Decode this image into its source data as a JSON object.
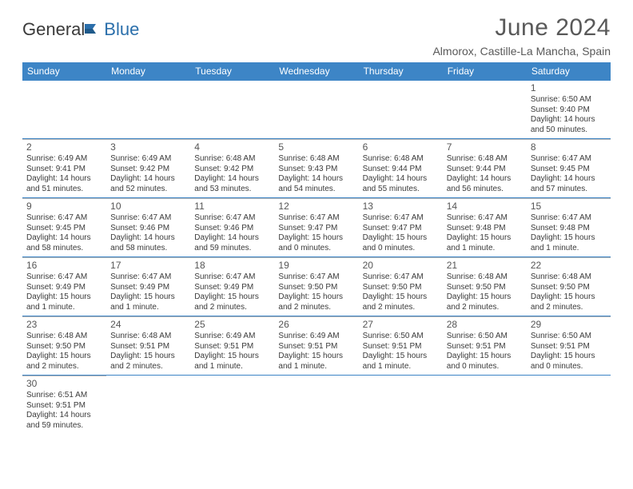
{
  "brand": {
    "part1": "General",
    "part2": "Blue"
  },
  "title": "June 2024",
  "location": "Almorox, Castille-La Mancha, Spain",
  "theme": {
    "header_bg": "#3d85c6",
    "header_text": "#ffffff",
    "rule_color": "#3d85c6",
    "cell_border": "#b8b8b8",
    "text_color": "#3a3a3a",
    "title_color": "#595959",
    "daynum_fontsize": 12,
    "body_fontsize": 10,
    "title_fontsize": 30,
    "subtitle_fontsize": 14
  },
  "daynames": [
    "Sunday",
    "Monday",
    "Tuesday",
    "Wednesday",
    "Thursday",
    "Friday",
    "Saturday"
  ],
  "weeks": [
    [
      null,
      null,
      null,
      null,
      null,
      null,
      {
        "n": "1",
        "sunrise": "Sunrise: 6:50 AM",
        "sunset": "Sunset: 9:40 PM",
        "daylight": "Daylight: 14 hours and 50 minutes."
      }
    ],
    [
      {
        "n": "2",
        "sunrise": "Sunrise: 6:49 AM",
        "sunset": "Sunset: 9:41 PM",
        "daylight": "Daylight: 14 hours and 51 minutes."
      },
      {
        "n": "3",
        "sunrise": "Sunrise: 6:49 AM",
        "sunset": "Sunset: 9:42 PM",
        "daylight": "Daylight: 14 hours and 52 minutes."
      },
      {
        "n": "4",
        "sunrise": "Sunrise: 6:48 AM",
        "sunset": "Sunset: 9:42 PM",
        "daylight": "Daylight: 14 hours and 53 minutes."
      },
      {
        "n": "5",
        "sunrise": "Sunrise: 6:48 AM",
        "sunset": "Sunset: 9:43 PM",
        "daylight": "Daylight: 14 hours and 54 minutes."
      },
      {
        "n": "6",
        "sunrise": "Sunrise: 6:48 AM",
        "sunset": "Sunset: 9:44 PM",
        "daylight": "Daylight: 14 hours and 55 minutes."
      },
      {
        "n": "7",
        "sunrise": "Sunrise: 6:48 AM",
        "sunset": "Sunset: 9:44 PM",
        "daylight": "Daylight: 14 hours and 56 minutes."
      },
      {
        "n": "8",
        "sunrise": "Sunrise: 6:47 AM",
        "sunset": "Sunset: 9:45 PM",
        "daylight": "Daylight: 14 hours and 57 minutes."
      }
    ],
    [
      {
        "n": "9",
        "sunrise": "Sunrise: 6:47 AM",
        "sunset": "Sunset: 9:45 PM",
        "daylight": "Daylight: 14 hours and 58 minutes."
      },
      {
        "n": "10",
        "sunrise": "Sunrise: 6:47 AM",
        "sunset": "Sunset: 9:46 PM",
        "daylight": "Daylight: 14 hours and 58 minutes."
      },
      {
        "n": "11",
        "sunrise": "Sunrise: 6:47 AM",
        "sunset": "Sunset: 9:46 PM",
        "daylight": "Daylight: 14 hours and 59 minutes."
      },
      {
        "n": "12",
        "sunrise": "Sunrise: 6:47 AM",
        "sunset": "Sunset: 9:47 PM",
        "daylight": "Daylight: 15 hours and 0 minutes."
      },
      {
        "n": "13",
        "sunrise": "Sunrise: 6:47 AM",
        "sunset": "Sunset: 9:47 PM",
        "daylight": "Daylight: 15 hours and 0 minutes."
      },
      {
        "n": "14",
        "sunrise": "Sunrise: 6:47 AM",
        "sunset": "Sunset: 9:48 PM",
        "daylight": "Daylight: 15 hours and 1 minute."
      },
      {
        "n": "15",
        "sunrise": "Sunrise: 6:47 AM",
        "sunset": "Sunset: 9:48 PM",
        "daylight": "Daylight: 15 hours and 1 minute."
      }
    ],
    [
      {
        "n": "16",
        "sunrise": "Sunrise: 6:47 AM",
        "sunset": "Sunset: 9:49 PM",
        "daylight": "Daylight: 15 hours and 1 minute."
      },
      {
        "n": "17",
        "sunrise": "Sunrise: 6:47 AM",
        "sunset": "Sunset: 9:49 PM",
        "daylight": "Daylight: 15 hours and 1 minute."
      },
      {
        "n": "18",
        "sunrise": "Sunrise: 6:47 AM",
        "sunset": "Sunset: 9:49 PM",
        "daylight": "Daylight: 15 hours and 2 minutes."
      },
      {
        "n": "19",
        "sunrise": "Sunrise: 6:47 AM",
        "sunset": "Sunset: 9:50 PM",
        "daylight": "Daylight: 15 hours and 2 minutes."
      },
      {
        "n": "20",
        "sunrise": "Sunrise: 6:47 AM",
        "sunset": "Sunset: 9:50 PM",
        "daylight": "Daylight: 15 hours and 2 minutes."
      },
      {
        "n": "21",
        "sunrise": "Sunrise: 6:48 AM",
        "sunset": "Sunset: 9:50 PM",
        "daylight": "Daylight: 15 hours and 2 minutes."
      },
      {
        "n": "22",
        "sunrise": "Sunrise: 6:48 AM",
        "sunset": "Sunset: 9:50 PM",
        "daylight": "Daylight: 15 hours and 2 minutes."
      }
    ],
    [
      {
        "n": "23",
        "sunrise": "Sunrise: 6:48 AM",
        "sunset": "Sunset: 9:50 PM",
        "daylight": "Daylight: 15 hours and 2 minutes."
      },
      {
        "n": "24",
        "sunrise": "Sunrise: 6:48 AM",
        "sunset": "Sunset: 9:51 PM",
        "daylight": "Daylight: 15 hours and 2 minutes."
      },
      {
        "n": "25",
        "sunrise": "Sunrise: 6:49 AM",
        "sunset": "Sunset: 9:51 PM",
        "daylight": "Daylight: 15 hours and 1 minute."
      },
      {
        "n": "26",
        "sunrise": "Sunrise: 6:49 AM",
        "sunset": "Sunset: 9:51 PM",
        "daylight": "Daylight: 15 hours and 1 minute."
      },
      {
        "n": "27",
        "sunrise": "Sunrise: 6:50 AM",
        "sunset": "Sunset: 9:51 PM",
        "daylight": "Daylight: 15 hours and 1 minute."
      },
      {
        "n": "28",
        "sunrise": "Sunrise: 6:50 AM",
        "sunset": "Sunset: 9:51 PM",
        "daylight": "Daylight: 15 hours and 0 minutes."
      },
      {
        "n": "29",
        "sunrise": "Sunrise: 6:50 AM",
        "sunset": "Sunset: 9:51 PM",
        "daylight": "Daylight: 15 hours and 0 minutes."
      }
    ],
    [
      {
        "n": "30",
        "sunrise": "Sunrise: 6:51 AM",
        "sunset": "Sunset: 9:51 PM",
        "daylight": "Daylight: 14 hours and 59 minutes."
      },
      null,
      null,
      null,
      null,
      null,
      null
    ]
  ]
}
